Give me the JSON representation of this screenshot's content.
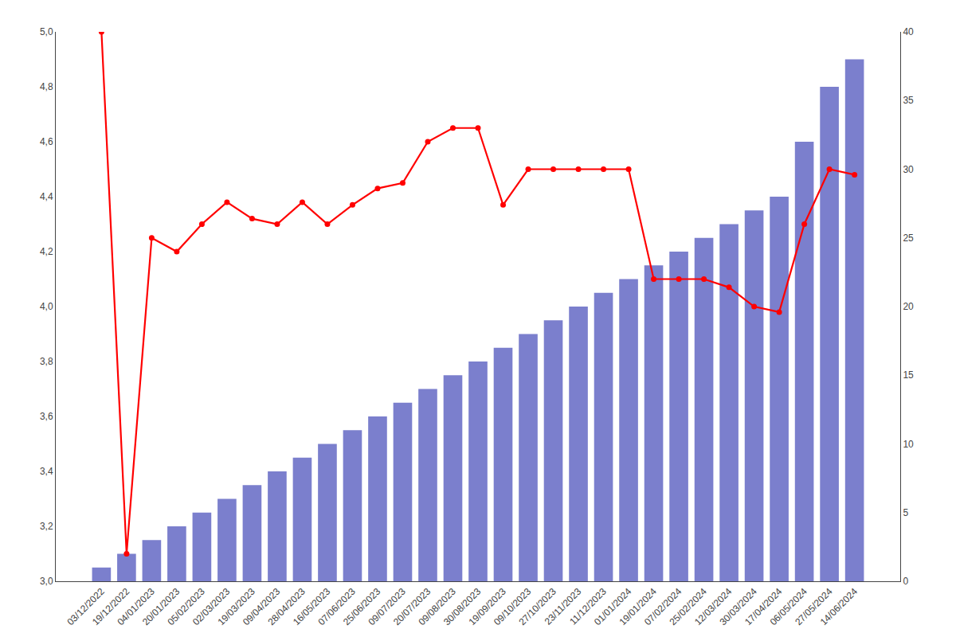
{
  "chart_data": {
    "type": "bar",
    "categories": [
      "03/12/2022",
      "19/12/2022",
      "04/01/2023",
      "20/01/2023",
      "05/02/2023",
      "02/03/2023",
      "19/03/2023",
      "09/04/2023",
      "28/04/2023",
      "16/05/2023",
      "07/06/2023",
      "25/06/2023",
      "09/07/2023",
      "20/07/2023",
      "09/08/2023",
      "30/08/2023",
      "19/09/2023",
      "09/10/2023",
      "27/10/2023",
      "23/11/2023",
      "11/12/2023",
      "01/01/2024",
      "19/01/2024",
      "07/02/2024",
      "25/02/2024",
      "12/03/2024",
      "30/03/2024",
      "17/04/2024",
      "06/05/2024",
      "27/05/2024",
      "14/06/2024"
    ],
    "series": [
      {
        "type": "bar",
        "color": "#7b7fcd",
        "axis": "y2",
        "values": [
          1,
          2,
          3,
          4,
          5,
          6,
          7,
          8,
          9,
          10,
          11,
          12,
          13,
          14,
          15,
          16,
          17,
          18,
          19,
          20,
          21,
          22,
          23,
          24,
          25,
          26,
          27,
          28,
          32,
          36,
          38
        ]
      },
      {
        "type": "line",
        "color": "#ff0000",
        "marker": "circle",
        "values": [
          5.0,
          3.1,
          4.25,
          4.2,
          4.3,
          4.38,
          4.32,
          4.3,
          4.38,
          4.3,
          4.37,
          4.43,
          4.45,
          4.6,
          4.65,
          4.65,
          4.37,
          4.5,
          4.5,
          4.5,
          4.5,
          4.5,
          4.1,
          4.1,
          4.1,
          4.07,
          4.0,
          3.98,
          4.3,
          4.5,
          4.48
        ]
      }
    ],
    "ylim": [
      3.0,
      5.0
    ],
    "yticks": [
      {
        "value": 3.0,
        "label": "3,0"
      },
      {
        "value": 3.2,
        "label": "3,2"
      },
      {
        "value": 3.4,
        "label": "3,4"
      },
      {
        "value": 3.6,
        "label": "3,6"
      },
      {
        "value": 3.8,
        "label": "3,8"
      },
      {
        "value": 4.0,
        "label": "4,0"
      },
      {
        "value": 4.2,
        "label": "4,2"
      },
      {
        "value": 4.4,
        "label": "4,4"
      },
      {
        "value": 4.6,
        "label": "4,6"
      },
      {
        "value": 4.8,
        "label": "4,8"
      },
      {
        "value": 5.0,
        "label": "5,0"
      }
    ],
    "y2lim": [
      0,
      40
    ],
    "y2ticks": [
      0,
      5,
      10,
      15,
      20,
      25,
      30,
      35,
      40
    ],
    "grid": false
  }
}
